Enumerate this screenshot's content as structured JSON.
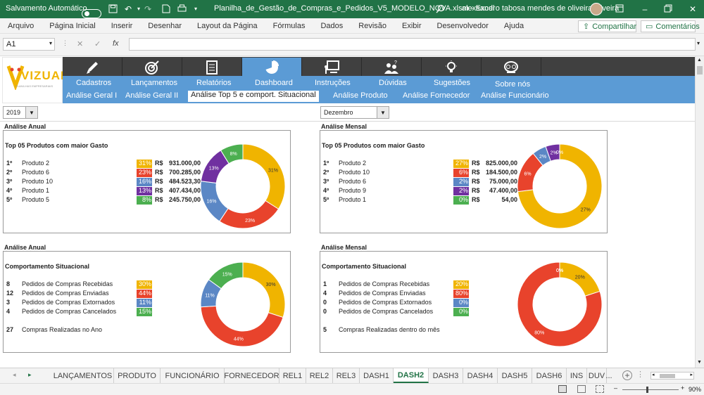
{
  "titlebar": {
    "autosave_label": "Salvamento Automático",
    "filename": "Planilha_de_Gestão_de_Compras_e_Pedidos_V5_MODELO_NOVA.xlsm  -  Excel",
    "user": "alexsandro tabosa mendes de oliveira oliveira"
  },
  "menu": {
    "items": [
      "Arquivo",
      "Página Inicial",
      "Inserir",
      "Desenhar",
      "Layout da Página",
      "Fórmulas",
      "Dados",
      "Revisão",
      "Exibir",
      "Desenvolvedor",
      "Ajuda"
    ],
    "share": "Compartilhar",
    "comments": "Comentários"
  },
  "formulabar": {
    "namebox": "A1",
    "fx": "fx",
    "formula": ""
  },
  "logo": {
    "text": "VIZUAL",
    "tagline": "PLANILHAS EMPRESARIAIS"
  },
  "nav": {
    "main": [
      "Cadastros",
      "Lançamentos",
      "Relatórios",
      "Dashboard",
      "Instruções",
      "Dúvidas",
      "Sugestões",
      "Sobre nós"
    ],
    "icons": [
      "pencil-icon",
      "target-icon",
      "document-icon",
      "pie-chart-icon",
      "presentation-icon",
      "help-people-icon",
      "lightbulb-icon",
      "owl-icon"
    ],
    "sub": [
      "Análise Geral I",
      "Análise Geral II",
      "Análise Top 5 e comport. Situacional",
      "Análise Produto",
      "Análise Fornecedor",
      "Análise Funcionário"
    ]
  },
  "filters": {
    "year": "2019",
    "month": "Dezembro"
  },
  "colors": {
    "yellow": "#f0b400",
    "red": "#e8432c",
    "blue": "#5b87c5",
    "purple": "#7030a0",
    "green": "#4caf50",
    "nav_blue": "#5b9bd5",
    "excel_green": "#217346"
  },
  "panels": {
    "top_annual": {
      "header": "Análise Anual",
      "title": "Top 05 Produtos com maior Gasto",
      "rows": [
        {
          "rank": "1º",
          "name": "Produto 2",
          "pct": "31%",
          "rs": "R$",
          "value": "931.000,00"
        },
        {
          "rank": "2º",
          "name": "Produto 6",
          "pct": "23%",
          "rs": "R$",
          "value": "700.285,00"
        },
        {
          "rank": "3º",
          "name": "Produto 10",
          "pct": "16%",
          "rs": "R$",
          "value": "484.523,30"
        },
        {
          "rank": "4º",
          "name": "Produto 1",
          "pct": "13%",
          "rs": "R$",
          "value": "407.434,00"
        },
        {
          "rank": "5º",
          "name": "Produto 5",
          "pct": "8%",
          "rs": "R$",
          "value": "245.750,00"
        }
      ]
    },
    "top_monthly": {
      "header": "Análise Mensal",
      "title": "Top 05 Produtos com maior Gasto",
      "rows": [
        {
          "rank": "1º",
          "name": "Produto 2",
          "pct": "27%",
          "rs": "R$",
          "value": "825.000,00"
        },
        {
          "rank": "2º",
          "name": "Produto 10",
          "pct": "6%",
          "rs": "R$",
          "value": "184.500,00"
        },
        {
          "rank": "3º",
          "name": "Produto 6",
          "pct": "2%",
          "rs": "R$",
          "value": "75.000,00"
        },
        {
          "rank": "4º",
          "name": "Produto 9",
          "pct": "2%",
          "rs": "R$",
          "value": "47.400,00"
        },
        {
          "rank": "5º",
          "name": "Produto 1",
          "pct": "0%",
          "rs": "R$",
          "value": "54,00"
        }
      ]
    },
    "sit_annual": {
      "header": "Análise Anual",
      "title": "Comportamento Situacional",
      "rows": [
        {
          "count": "8",
          "name": "Pedidos de Compras Recebidas",
          "pct": "30%"
        },
        {
          "count": "12",
          "name": "Pedidos de Compras Enviadas",
          "pct": "44%"
        },
        {
          "count": "3",
          "name": "Pedidos de Compras Extornados",
          "pct": "11%"
        },
        {
          "count": "4",
          "name": "Pedidos de Compras Cancelados",
          "pct": "15%"
        }
      ],
      "total_count": "27",
      "total_label": "Compras Realizadas no Ano"
    },
    "sit_monthly": {
      "header": "Análise Mensal",
      "title": "Comportamento Situacional",
      "rows": [
        {
          "count": "1",
          "name": "Pedidos de Compras Recebidas",
          "pct": "20%"
        },
        {
          "count": "4",
          "name": "Pedidos de Compras Enviadas",
          "pct": "80%"
        },
        {
          "count": "0",
          "name": "Pedidos de Compras Extornados",
          "pct": "0%"
        },
        {
          "count": "0",
          "name": "Pedidos de Compras Cancelados",
          "pct": "0%"
        }
      ],
      "total_count": "5",
      "total_label": "Compras Realizadas dentro do mês"
    }
  },
  "chart_data": [
    {
      "type": "pie",
      "title": "",
      "categories": [
        "Produto 2",
        "Produto 6",
        "Produto 10",
        "Produto 1",
        "Produto 5"
      ],
      "values": [
        31,
        23,
        16,
        13,
        8
      ],
      "labels": [
        "31%",
        "23%",
        "16%",
        "13%",
        "8%"
      ],
      "colors": [
        "#f0b400",
        "#e8432c",
        "#5b87c5",
        "#7030a0",
        "#4caf50"
      ],
      "start_deg": 0,
      "gap_deg": 0
    },
    {
      "type": "pie",
      "title": "",
      "categories": [
        "Produto 2",
        "Produto 10",
        "Produto 6",
        "Produto 9",
        "Produto 1"
      ],
      "values": [
        27,
        6,
        2,
        2,
        0
      ],
      "labels": [
        "27%",
        "6%",
        "2%",
        "2%",
        "0%"
      ],
      "colors": [
        "#f0b400",
        "#e8432c",
        "#5b87c5",
        "#7030a0",
        "#4caf50"
      ],
      "start_deg": 0,
      "gap_deg": 0
    },
    {
      "type": "pie",
      "title": "",
      "categories": [
        "Recebidas",
        "Enviadas",
        "Extornados",
        "Cancelados"
      ],
      "values": [
        30,
        44,
        11,
        15
      ],
      "labels": [
        "30%",
        "44%",
        "11%",
        "15%"
      ],
      "colors": [
        "#f0b400",
        "#e8432c",
        "#5b87c5",
        "#4caf50"
      ],
      "start_deg": 0,
      "gap_deg": 0
    },
    {
      "type": "pie",
      "title": "",
      "categories": [
        "Recebidas",
        "Enviadas",
        "Extornados",
        "Cancelados"
      ],
      "values": [
        20,
        80,
        0,
        0
      ],
      "labels": [
        "20%",
        "80%",
        "0%",
        "0%"
      ],
      "colors": [
        "#f0b400",
        "#e8432c",
        "#5b87c5",
        "#4caf50"
      ],
      "start_deg": 0,
      "gap_deg": 0
    }
  ],
  "tabs": [
    "LANÇAMENTOS",
    "PRODUTO",
    "FUNCIONÁRIO",
    "FORNECEDOR",
    "REL1",
    "REL2",
    "REL3",
    "DASH1",
    "DASH2",
    "DASH3",
    "DASH4",
    "DASH5",
    "DASH6",
    "INS",
    "DUV",
    "..."
  ],
  "active_tab": "DASH2",
  "status": {
    "zoom": "90%"
  }
}
